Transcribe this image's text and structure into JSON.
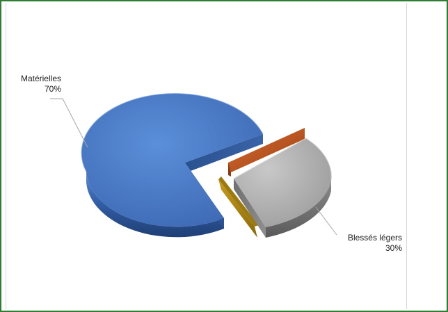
{
  "chart_data": {
    "type": "pie",
    "style": "3d-exploded",
    "slices": [
      {
        "name": "Matérielles",
        "percent_label": "70%",
        "value": 70,
        "color": "#4472c4"
      },
      {
        "name": "Blessés légers",
        "percent_label": "30%",
        "value": 30,
        "color": "#a5a5a5"
      },
      {
        "name": "",
        "percent_label": "",
        "value": 0,
        "color": "#c0582a"
      },
      {
        "name": "",
        "percent_label": "",
        "value": 0,
        "color": "#b8900f"
      }
    ],
    "legend": "none",
    "data_labels": "outside-with-leader-lines"
  }
}
